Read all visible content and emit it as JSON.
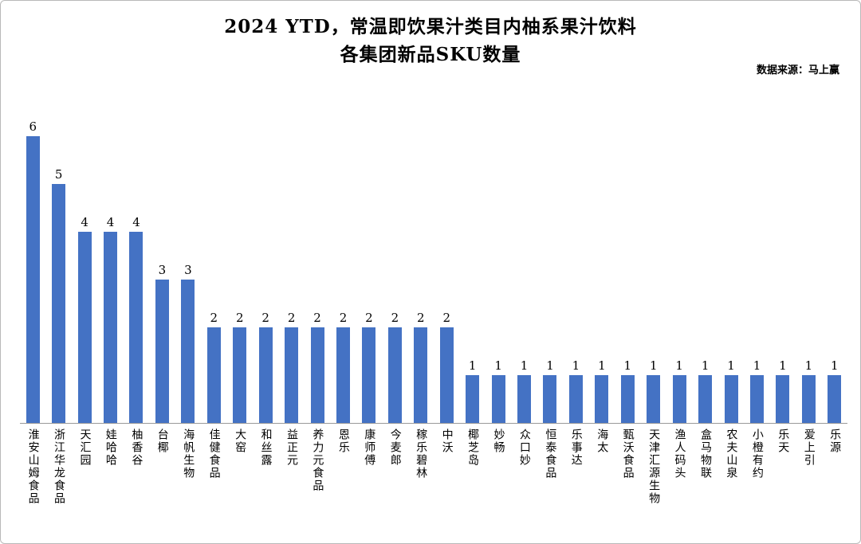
{
  "title": {
    "line1": "2024 YTD，常温即饮果汁类目内柚系果汁饮料",
    "line2": "各集团新品SKU数量"
  },
  "source": "数据来源：马上赢",
  "chart_data": {
    "type": "bar",
    "title": "2024 YTD，常温即饮果汁类目内柚系果汁饮料 各集团新品SKU数量",
    "xlabel": "",
    "ylabel": "",
    "ylim": [
      0,
      6
    ],
    "grid": false,
    "legend": "none",
    "value_labels": true,
    "bar_color": "#4472C4",
    "categories": [
      "淮安山姆食品",
      "浙江华龙食品",
      "天汇园",
      "娃哈哈",
      "柚香谷",
      "台椰",
      "海帆生物",
      "佳健食品",
      "大窑",
      "和丝露",
      "益正元",
      "养力元食品",
      "恩乐",
      "康师傅",
      "今麦郎",
      "稼乐碧林",
      "中沃",
      "椰芝岛",
      "妙畅",
      "众口妙",
      "恒泰食品",
      "乐事达",
      "海太",
      "甄沃食品",
      "天津汇源生物",
      "渔人码头",
      "盒马物联",
      "农夫山泉",
      "小橙有约",
      "乐天",
      "爱上引",
      "乐源"
    ],
    "values": [
      6,
      5,
      4,
      4,
      4,
      3,
      3,
      2,
      2,
      2,
      2,
      2,
      2,
      2,
      2,
      2,
      2,
      1,
      1,
      1,
      1,
      1,
      1,
      1,
      1,
      1,
      1,
      1,
      1,
      1,
      1,
      1
    ]
  }
}
